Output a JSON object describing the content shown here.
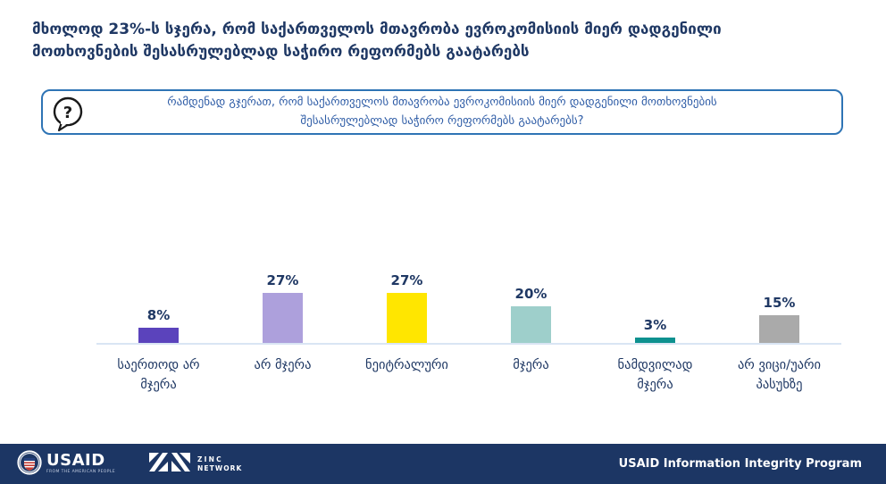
{
  "title": "მხოლოდ 23%-ს სჯერა, რომ საქართველოს მთავრობა ევროკომისიის მიერ დადგენილი\nმოთხოვნების შესასრულებლად საჭირო რეფორმებს გაატარებს",
  "question": {
    "icon": "question-speech-bubble",
    "icon_glyph": "?",
    "text": "რამდენად გჯერათ, რომ საქართველოს მთავრობა ევროკომისიის მიერ დადგენილი მოთხოვნების\nშესასრულებლად საჭირო რეფორმებს გაატარებს?"
  },
  "chart_data": {
    "type": "bar",
    "categories": [
      "საერთოდ არ მჯერა",
      "არ მჯერა",
      "ნეიტრალური",
      "მჯერა",
      "ნამდვილად მჯერა",
      "არ ვიცი/უარი პასუხზე"
    ],
    "categories_display": [
      "საერთოდ არ\nმჯერა",
      "არ მჯერა",
      "ნეიტრალური",
      "მჯერა",
      "ნამდვილად\nმჯერა",
      "არ ვიცი/უარი\nპასუხზე"
    ],
    "values": [
      8,
      27,
      27,
      20,
      3,
      15
    ],
    "value_labels": [
      "8%",
      "27%",
      "27%",
      "20%",
      "3%",
      "15%"
    ],
    "bar_colors": [
      "#5B43BC",
      "#ADA0DC",
      "#FFE600",
      "#9ECFCB",
      "#0E918F",
      "#AAAAAA"
    ],
    "title": "",
    "xlabel": "",
    "ylabel": "",
    "ylim": [
      0,
      30
    ],
    "grid": false,
    "legend": false,
    "label_color": "#1F3864",
    "axis_line_color": "#D9E5F4"
  },
  "footer": {
    "background": "#1C3664",
    "usaid_logo": {
      "name": "USAID",
      "tagline": "FROM THE AMERICAN PEOPLE"
    },
    "zinc_logo": {
      "line1": "ZINC",
      "line2": "NETWORK"
    },
    "program": "USAID Information Integrity Program"
  },
  "colors": {
    "title_text": "#1F3864",
    "question_text": "#2E5CA6",
    "question_border": "#2E74B5"
  }
}
